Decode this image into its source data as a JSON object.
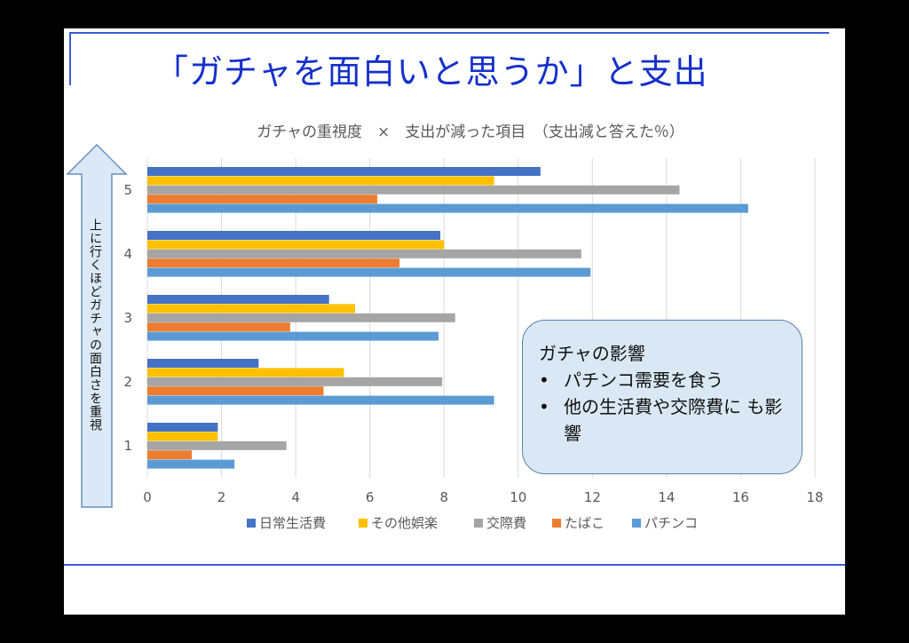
{
  "slide": {
    "title": "「ガチャを面白いと思うか」と支出",
    "side_arrow_label": "上に行くほどガチャの面白さを重視"
  },
  "callout": {
    "title": "ガチャの影響",
    "bullets": [
      "パチンコ需要を食う",
      "他の生活費や交際費に も影響"
    ]
  },
  "chart_data": {
    "type": "bar",
    "orientation": "horizontal",
    "title": "ガチャの重視度　×　支出が減った項目　（支出減と答えた％）",
    "categories": [
      "1",
      "2",
      "3",
      "4",
      "5"
    ],
    "series": [
      {
        "name": "日常生活費",
        "color": "#4472c4",
        "values": [
          1.9,
          3.0,
          4.9,
          7.9,
          10.6
        ]
      },
      {
        "name": "その他娯楽",
        "color": "#ffc000",
        "values": [
          1.9,
          5.3,
          5.6,
          8.0,
          9.35
        ]
      },
      {
        "name": "交際費",
        "color": "#a5a5a5",
        "values": [
          3.75,
          7.95,
          8.3,
          11.7,
          14.35
        ]
      },
      {
        "name": "たばこ",
        "color": "#ed7d31",
        "values": [
          1.2,
          4.75,
          3.85,
          6.8,
          6.2
        ]
      },
      {
        "name": "パチンコ",
        "color": "#5b9bd5",
        "values": [
          2.35,
          9.35,
          7.85,
          11.95,
          16.2
        ]
      }
    ],
    "xlim": [
      0,
      18
    ],
    "xticks": [
      "0",
      "2",
      "4",
      "6",
      "8",
      "10",
      "12",
      "14",
      "16",
      "18"
    ],
    "grid": true,
    "legend": "bottom"
  }
}
